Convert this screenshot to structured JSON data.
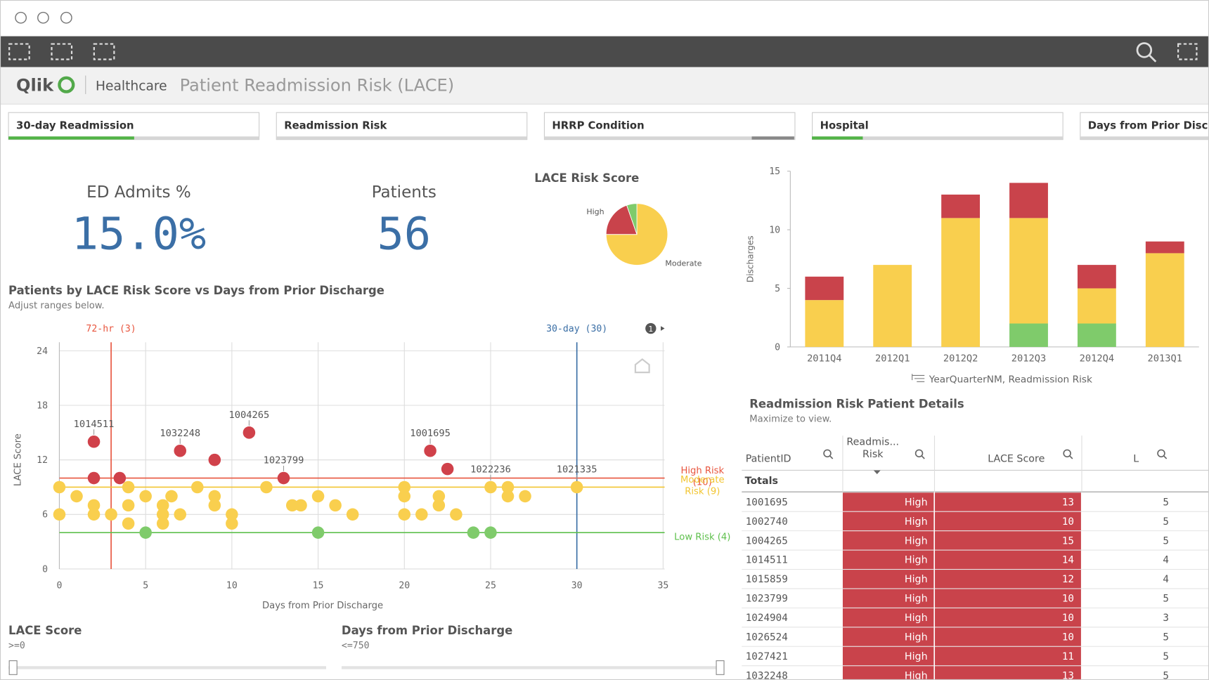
{
  "header": {
    "logo": "Qlik",
    "app": "Healthcare",
    "title": "Patient Readmission Risk (LACE)"
  },
  "filters": [
    "30-day Readmission",
    "Readmission Risk",
    "HRRP Condition",
    "Hospital",
    "Days from Prior Discharg"
  ],
  "kpis": [
    {
      "label": "ED Admits %",
      "value": "15.0%"
    },
    {
      "label": "Patients",
      "value": "56"
    }
  ],
  "pie": {
    "type": "pie",
    "title": "LACE Risk Score",
    "categories": [
      "Moderate",
      "High",
      null
    ],
    "values": [
      42,
      11,
      3
    ],
    "colors": [
      "#f9cf4e",
      "#c9434b",
      "#7fcb6b"
    ]
  },
  "bars": {
    "type": "bar",
    "stacked": true,
    "ylabel": "Discharges",
    "caption": "YearQuarterNM, Readmission Risk",
    "categories": [
      "2011Q4",
      "2012Q1",
      "2012Q2",
      "2012Q3",
      "2012Q4",
      "2013Q1"
    ],
    "series": [
      {
        "color": "#7fcb6b",
        "values": [
          0,
          0,
          0,
          2,
          2,
          0
        ]
      },
      {
        "color": "#f9cf4e",
        "values": [
          4,
          7,
          11,
          9,
          3,
          8
        ]
      },
      {
        "color": "#c9434b",
        "values": [
          2,
          0,
          2,
          3,
          2,
          1
        ]
      }
    ],
    "ylim": [
      0,
      15
    ],
    "yticks": [
      0,
      5,
      10,
      15
    ]
  },
  "scatter": {
    "type": "scatter",
    "title": "Patients by LACE Risk Score vs Days from Prior Discharge",
    "subtitle": "Adjust ranges below.",
    "xlabel": "Days from Prior Discharge",
    "ylabel": "LACE Score",
    "badge": "1",
    "xlim": [
      0,
      35
    ],
    "xticks": [
      0,
      5,
      10,
      15,
      20,
      25,
      30,
      35
    ],
    "ylim": [
      0,
      24
    ],
    "yticks": [
      0,
      6,
      12,
      18,
      24
    ],
    "grid": true,
    "vlines": [
      {
        "value": 3,
        "label": "72-hr (3)",
        "color": "#e8553e"
      },
      {
        "value": 30,
        "label": "30-day (30)",
        "color": "#3a6ea5"
      }
    ],
    "hlines": [
      {
        "value": 10,
        "label": "High Risk (10)",
        "color": "#e8553e"
      },
      {
        "value": 9,
        "label": "Moderate Risk (9)",
        "color": "#f2c531"
      },
      {
        "value": 4,
        "label": "Low Risk (4)",
        "color": "#5fc04d"
      }
    ],
    "series": [
      {
        "color": "#d0414a",
        "x": [
          2,
          2,
          3.5,
          7,
          9,
          11,
          13,
          21.5,
          22.5
        ],
        "values": [
          14,
          10,
          10,
          13,
          12,
          15,
          10,
          13,
          11
        ],
        "labels": [
          "1014511",
          null,
          null,
          "1032248",
          null,
          "1004265",
          "1023799",
          "1001695",
          null
        ]
      },
      {
        "color": "#f9cf4e",
        "x": [
          0,
          0,
          1,
          2,
          2,
          3,
          4,
          4,
          4,
          5,
          6,
          6,
          6,
          6.5,
          7,
          8,
          9,
          9,
          10,
          10,
          12,
          13.5,
          14,
          15,
          16,
          17,
          20,
          20,
          20,
          21,
          22,
          22,
          23,
          25,
          26,
          26,
          27,
          30
        ],
        "values": [
          9,
          6,
          8,
          7,
          6,
          6,
          9,
          7,
          5,
          8,
          7,
          6,
          5,
          8,
          6,
          9,
          8,
          7,
          6,
          5,
          9,
          7,
          7,
          8,
          7,
          6,
          9,
          8,
          6,
          6,
          8,
          7,
          6,
          9,
          9,
          8,
          8,
          9
        ],
        "labels": [
          null,
          null,
          null,
          null,
          null,
          null,
          null,
          null,
          null,
          null,
          null,
          null,
          null,
          null,
          null,
          null,
          null,
          null,
          null,
          null,
          null,
          null,
          null,
          null,
          null,
          null,
          null,
          null,
          null,
          null,
          null,
          null,
          null,
          "1022236",
          null,
          null,
          null,
          "1021335"
        ]
      },
      {
        "color": "#7fcb6b",
        "x": [
          5,
          15,
          24,
          25
        ],
        "values": [
          4,
          4,
          4,
          4
        ],
        "labels": [
          null,
          null,
          null,
          null
        ]
      }
    ]
  },
  "table": {
    "title": "Readmission Risk Patient Details",
    "subtitle": "Maximize to view.",
    "columns": [
      "PatientID",
      "Readmis... Risk",
      "LACE Score",
      "L"
    ],
    "totals": "Totals",
    "rows": [
      [
        "1001695",
        "High",
        13,
        5
      ],
      [
        "1002740",
        "High",
        10,
        5
      ],
      [
        "1004265",
        "High",
        15,
        5
      ],
      [
        "1014511",
        "High",
        14,
        4
      ],
      [
        "1015859",
        "High",
        12,
        4
      ],
      [
        "1023799",
        "High",
        10,
        5
      ],
      [
        "1024904",
        "High",
        10,
        3
      ],
      [
        "1026524",
        "High",
        10,
        5
      ],
      [
        "1027421",
        "High",
        11,
        5
      ],
      [
        "1032248",
        "High",
        13,
        5
      ]
    ]
  },
  "sliders": [
    {
      "title": "LACE Score",
      "value": ">=0"
    },
    {
      "title": "Days from Prior Discharge",
      "value": "<=750"
    }
  ]
}
